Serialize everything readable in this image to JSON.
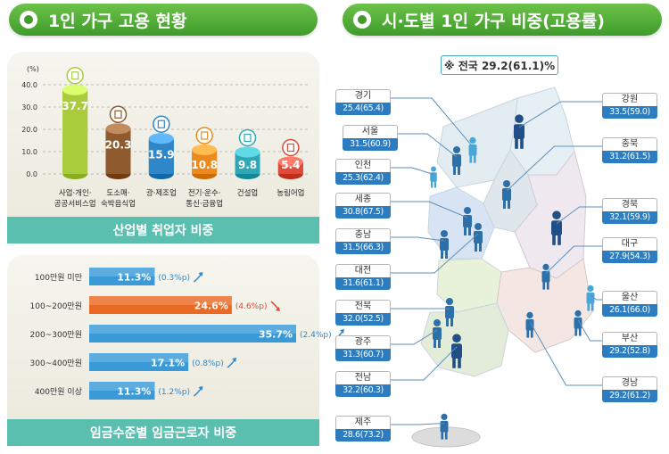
{
  "left_title": "1인 가구 고용 현황",
  "right_title": "시·도별 1인 가구 비중(고용률)",
  "industry": {
    "unit": "(%)",
    "footer": "산업별 취업자 비중",
    "colors": [
      "#a8cc3c",
      "#8e5a2e",
      "#2f86c8",
      "#ea8a1f",
      "#2fa8b6",
      "#e04a39"
    ],
    "icons": [
      "document-icon",
      "dish-icon",
      "gear-icon",
      "phone-icon",
      "truck-icon",
      "corn-icon"
    ],
    "chart_data": {
      "type": "bar",
      "categories": [
        [
          "사업·개인·",
          "공공서비스업"
        ],
        [
          "도소매·",
          "숙박음식업"
        ],
        [
          "광·제조업"
        ],
        [
          "전기·운수·",
          "통신·금융업"
        ],
        [
          "건설업"
        ],
        [
          "농림어업"
        ]
      ],
      "values": [
        37.7,
        20.3,
        15.9,
        10.8,
        9.8,
        5.4
      ],
      "value_labels": [
        "37.7",
        "20.3",
        "15.9",
        "10.8",
        "9.8",
        "5.4"
      ],
      "yticks": [
        "0.0",
        "10.0",
        "20.0",
        "30.0",
        "40.0"
      ],
      "ylim": [
        0,
        40
      ],
      "grid": true
    }
  },
  "wage": {
    "footer": "임금수준별 임금근로자 비중",
    "colors": {
      "default": "#3a9ad8",
      "highlight": "#ea6a24",
      "up": "#2f86c8",
      "down": "#e04a39"
    },
    "chart_data": {
      "type": "bar",
      "orientation": "horizontal",
      "categories": [
        "100만원 미만",
        "100~200만원",
        "200~300만원",
        "300~400만원",
        "400만원 이상"
      ],
      "values": [
        11.3,
        24.6,
        35.7,
        17.1,
        11.3
      ],
      "value_labels": [
        "11.3%",
        "24.6%",
        "35.7%",
        "17.1%",
        "11.3%"
      ],
      "changes": [
        "(0.3%p)",
        "(4.6%p)",
        "(2.4%p)",
        "(0.8%p)",
        "(1.2%p)"
      ],
      "change_direction": [
        "up",
        "down",
        "up",
        "up",
        "up"
      ],
      "highlight_index": 1
    }
  },
  "map": {
    "headline": "※ 전국 29.2(61.1)%",
    "regions": [
      {
        "name": "경기",
        "value": "25.4(65.4)"
      },
      {
        "name": "서울",
        "value": "31.5(60.9)"
      },
      {
        "name": "인천",
        "value": "25.3(62.4)"
      },
      {
        "name": "세종",
        "value": "30.8(67.5)"
      },
      {
        "name": "충남",
        "value": "31.5(66.3)"
      },
      {
        "name": "대전",
        "value": "31.6(61.1)"
      },
      {
        "name": "전북",
        "value": "32.0(52.5)"
      },
      {
        "name": "광주",
        "value": "31.3(60.7)"
      },
      {
        "name": "전남",
        "value": "32.2(60.3)"
      },
      {
        "name": "제주",
        "value": "28.6(73.2)"
      },
      {
        "name": "강원",
        "value": "33.5(59.0)"
      },
      {
        "name": "충북",
        "value": "31.2(61.5)"
      },
      {
        "name": "경북",
        "value": "32.1(59.9)"
      },
      {
        "name": "대구",
        "value": "27.9(54.3)"
      },
      {
        "name": "울산",
        "value": "26.1(66.0)"
      },
      {
        "name": "부산",
        "value": "29.2(52.8)"
      },
      {
        "name": "경남",
        "value": "29.2(61.2)"
      }
    ]
  }
}
